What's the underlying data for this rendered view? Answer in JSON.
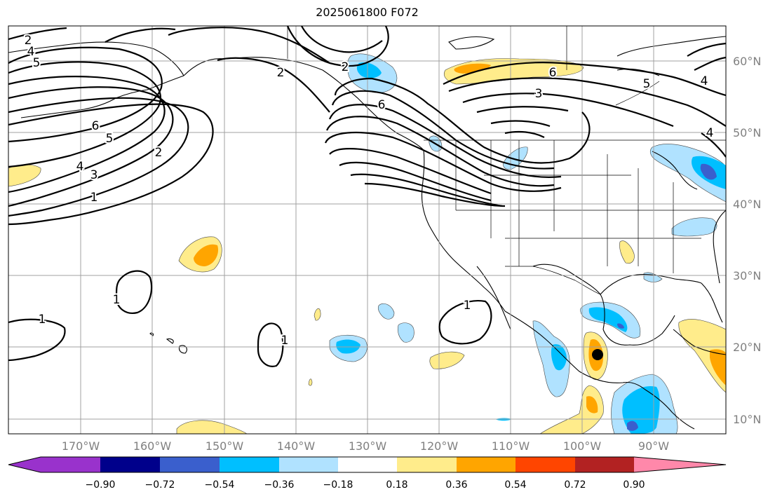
{
  "title": "2025061800 F072",
  "lat_labels": [
    "60°N",
    "50°N",
    "40°N",
    "30°N",
    "20°N",
    "10°N"
  ],
  "lon_labels": [
    "170°W",
    "160°W",
    "150°W",
    "140°W",
    "130°W",
    "120°W",
    "110°W",
    "100°W",
    "90°W"
  ],
  "colorbar": {
    "ticks": [
      "−0.90",
      "−0.72",
      "−0.54",
      "−0.36",
      "−0.18",
      "0.18",
      "0.36",
      "0.54",
      "0.72",
      "0.90"
    ],
    "colors": [
      "#9932cc",
      "#00008b",
      "#3a5fcd",
      "#00bfff",
      "#b0e2ff",
      "#ffffff",
      "#ffec8b",
      "#ffa500",
      "#ff4500",
      "#b22222",
      "#ff88aa"
    ]
  },
  "contour_labels": [
    "2",
    "4",
    "5",
    "6",
    "5",
    "4",
    "3",
    "2",
    "1",
    "2",
    "2",
    "6",
    "6",
    "3",
    "5",
    "4",
    "4",
    "1",
    "1",
    "1",
    "1"
  ]
}
